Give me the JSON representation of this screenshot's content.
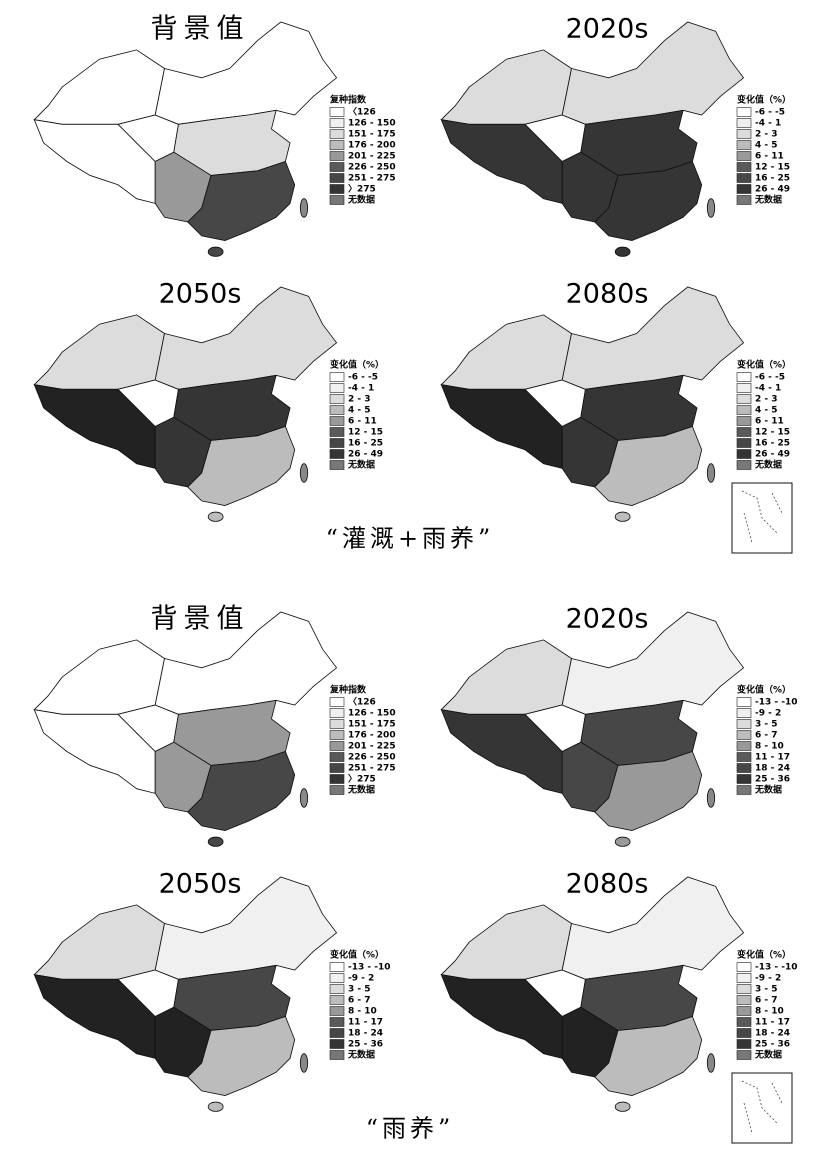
{
  "groups": [
    {
      "caption": "“灌溉+雨养”",
      "panels": [
        {
          "title": "背景值",
          "legend_title": "复种指数",
          "legend": [
            "〈126",
            "126 - 150",
            "151 - 175",
            "176 - 200",
            "201 - 225",
            "226 - 250",
            "251 - 275",
            "〉275",
            "无数据"
          ]
        },
        {
          "title": "2020s",
          "legend_title": "变化值（%）",
          "legend": [
            "-6 - -5",
            "-4 - 1",
            "2 - 3",
            "4 - 5",
            "6 - 11",
            "12 - 15",
            "16 - 25",
            "26 - 49",
            "无数据"
          ]
        },
        {
          "title": "2050s",
          "legend_title": "变化值（%）",
          "legend": [
            "-6 - -5",
            "-4 - 1",
            "2 - 3",
            "4 - 5",
            "6 - 11",
            "12 - 15",
            "16 - 25",
            "26 - 49",
            "无数据"
          ]
        },
        {
          "title": "2080s",
          "legend_title": "变化值（%）",
          "legend": [
            "-6 - -5",
            "-4 - 1",
            "2 - 3",
            "4 - 5",
            "6 - 11",
            "12 - 15",
            "16 - 25",
            "26 - 49",
            "无数据"
          ]
        }
      ]
    },
    {
      "caption": "“雨养”",
      "panels": [
        {
          "title": "背景值",
          "legend_title": "复种指数",
          "legend": [
            "〈126",
            "126 - 150",
            "151 - 175",
            "176 - 200",
            "201 - 225",
            "226 - 250",
            "251 - 275",
            "〉275",
            "无数据"
          ]
        },
        {
          "title": "2020s",
          "legend_title": "变化值（%）",
          "legend": [
            "-13 - -10",
            "-9 - 2",
            "3 - 5",
            "6 - 7",
            "8 - 10",
            "11 - 17",
            "18 - 24",
            "25 - 36",
            "无数据"
          ]
        },
        {
          "title": "2050s",
          "legend_title": "变化值（%）",
          "legend": [
            "-13 - -10",
            "-9 - 2",
            "3 - 5",
            "6 - 7",
            "8 - 10",
            "11 - 17",
            "18 - 24",
            "25 - 36",
            "无数据"
          ]
        },
        {
          "title": "2080s",
          "legend_title": "变化值（%）",
          "legend": [
            "-13 - -10",
            "-9 - 2",
            "3 - 5",
            "6 - 7",
            "8 - 10",
            "11 - 17",
            "18 - 24",
            "25 - 36",
            "无数据"
          ]
        }
      ]
    }
  ]
}
